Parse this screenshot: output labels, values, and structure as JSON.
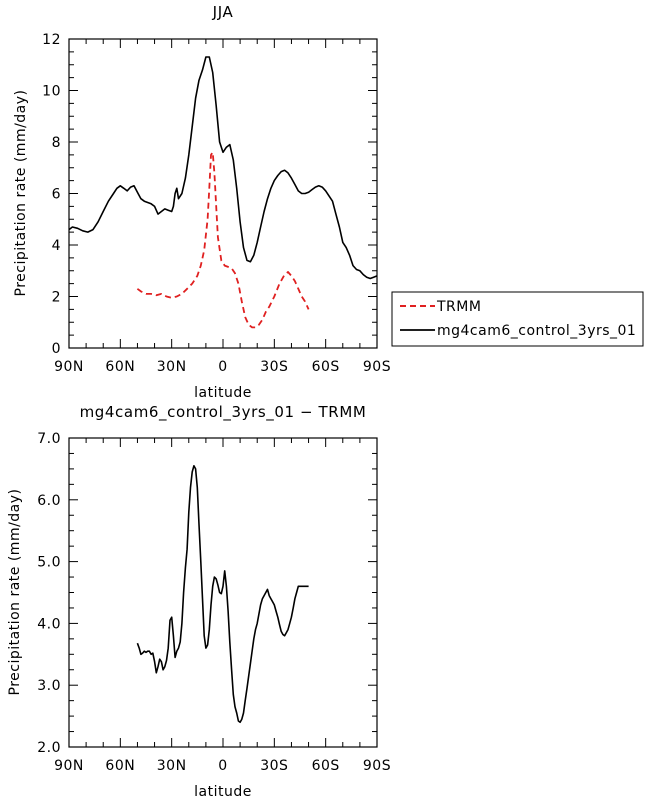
{
  "chart_data": [
    {
      "type": "line",
      "title": "JJA",
      "xlabel": "latitude",
      "ylabel": "Precipitation rate  (mm/day)",
      "xlim": [
        -90,
        90
      ],
      "ylim": [
        0,
        12
      ],
      "x_ticks": [
        -90,
        -60,
        -30,
        0,
        30,
        60,
        90
      ],
      "x_tick_labels": [
        "90N",
        "60N",
        "30N",
        "0",
        "30S",
        "60S",
        "90S"
      ],
      "y_ticks": [
        0,
        2,
        4,
        6,
        8,
        10,
        12
      ],
      "y_tick_labels": [
        "0",
        "2",
        "4",
        "6",
        "8",
        "10",
        "12"
      ],
      "legend": {
        "placement": "outside-right",
        "entries": [
          "TRMM",
          "mg4cam6_control_3yrs_01"
        ]
      },
      "series": [
        {
          "name": "TRMM",
          "color": "#e02020",
          "dash": "dashed",
          "x": [
            -50,
            -48,
            -45,
            -42,
            -39,
            -36,
            -33,
            -30,
            -27,
            -24,
            -21,
            -18,
            -15,
            -13,
            -11,
            -9,
            -8,
            -7,
            -6,
            -5,
            -4,
            -3,
            -1,
            1,
            3,
            5,
            7,
            9,
            11,
            13,
            15,
            17,
            19,
            21,
            23,
            25,
            27,
            30,
            33,
            36,
            38,
            40,
            42,
            44,
            46,
            48,
            50
          ],
          "y": [
            2.3,
            2.2,
            2.1,
            2.1,
            2.05,
            2.1,
            2.0,
            1.95,
            2.0,
            2.1,
            2.3,
            2.5,
            2.8,
            3.2,
            3.8,
            5.0,
            6.2,
            7.5,
            7.6,
            6.8,
            5.5,
            4.3,
            3.4,
            3.2,
            3.15,
            3.1,
            2.9,
            2.5,
            1.8,
            1.2,
            0.9,
            0.8,
            0.8,
            0.9,
            1.1,
            1.4,
            1.6,
            2.0,
            2.5,
            2.85,
            2.95,
            2.8,
            2.6,
            2.3,
            2.0,
            1.8,
            1.5
          ]
        },
        {
          "name": "mg4cam6_control_3yrs_01",
          "color": "#000000",
          "dash": "solid",
          "x": [
            -90,
            -88,
            -85,
            -82,
            -79,
            -76,
            -73,
            -70,
            -67,
            -64,
            -62,
            -60,
            -58,
            -56,
            -54,
            -52,
            -50,
            -48,
            -46,
            -44,
            -42,
            -40,
            -38,
            -36,
            -34,
            -32,
            -30,
            -29,
            -28,
            -27,
            -26,
            -24,
            -22,
            -20,
            -18,
            -16,
            -14,
            -12,
            -10,
            -8,
            -6,
            -4,
            -3,
            -2,
            0,
            2,
            4,
            6,
            8,
            10,
            12,
            14,
            16,
            18,
            20,
            22,
            24,
            26,
            28,
            30,
            32,
            34,
            36,
            38,
            40,
            42,
            44,
            46,
            48,
            50,
            52,
            54,
            56,
            58,
            60,
            62,
            64,
            66,
            68,
            70,
            72,
            74,
            76,
            78,
            80,
            82,
            84,
            86,
            88,
            90
          ],
          "y": [
            4.6,
            4.7,
            4.65,
            4.55,
            4.5,
            4.6,
            4.9,
            5.3,
            5.7,
            6.0,
            6.2,
            6.3,
            6.2,
            6.1,
            6.25,
            6.3,
            6.05,
            5.8,
            5.7,
            5.65,
            5.6,
            5.5,
            5.2,
            5.3,
            5.4,
            5.35,
            5.3,
            5.5,
            6.0,
            6.2,
            5.8,
            6.0,
            6.6,
            7.5,
            8.6,
            9.7,
            10.4,
            10.8,
            11.3,
            11.3,
            10.7,
            9.4,
            8.7,
            8.0,
            7.6,
            7.8,
            7.9,
            7.3,
            6.2,
            4.9,
            3.9,
            3.4,
            3.35,
            3.6,
            4.1,
            4.7,
            5.3,
            5.8,
            6.2,
            6.5,
            6.7,
            6.85,
            6.9,
            6.8,
            6.6,
            6.35,
            6.1,
            6.0,
            6.0,
            6.05,
            6.15,
            6.25,
            6.3,
            6.25,
            6.1,
            5.9,
            5.7,
            5.2,
            4.7,
            4.1,
            3.9,
            3.6,
            3.2,
            3.05,
            3.0,
            2.85,
            2.75,
            2.7,
            2.75,
            2.8
          ]
        }
      ]
    },
    {
      "type": "line",
      "title": "mg4cam6_control_3yrs_01 − TRMM",
      "xlabel": "latitude",
      "ylabel": "Precipitation rate  (mm/day)",
      "xlim": [
        -90,
        90
      ],
      "ylim": [
        2.0,
        7.0
      ],
      "x_ticks": [
        -90,
        -60,
        -30,
        0,
        30,
        60,
        90
      ],
      "x_tick_labels": [
        "90N",
        "60N",
        "30N",
        "0",
        "30S",
        "60S",
        "90S"
      ],
      "y_ticks": [
        2.0,
        3.0,
        4.0,
        5.0,
        6.0,
        7.0
      ],
      "y_tick_labels": [
        "2.0",
        "3.0",
        "4.0",
        "5.0",
        "6.0",
        "7.0"
      ],
      "series": [
        {
          "color": "#000000",
          "x": [
            -50,
            -49,
            -48,
            -47,
            -46,
            -45,
            -44,
            -43,
            -42,
            -41,
            -40,
            -39,
            -38,
            -37,
            -36,
            -35,
            -34,
            -33,
            -32,
            -31,
            -30,
            -29,
            -28,
            -27,
            -26,
            -25,
            -24,
            -23,
            -22,
            -21,
            -20,
            -19,
            -18,
            -17,
            -16,
            -15,
            -14,
            -13,
            -12,
            -11,
            -10,
            -9,
            -8,
            -7,
            -6,
            -5,
            -4,
            -3,
            -2,
            -1,
            0,
            1,
            2,
            3,
            4,
            5,
            6,
            7,
            8,
            9,
            10,
            11,
            12,
            13,
            14,
            15,
            16,
            17,
            18,
            19,
            20,
            21,
            22,
            23,
            24,
            25,
            26,
            27,
            28,
            29,
            30,
            31,
            32,
            33,
            34,
            35,
            36,
            37,
            38,
            39,
            40,
            41,
            42,
            43,
            44,
            45,
            46,
            47,
            48,
            49,
            50
          ],
          "y": [
            3.68,
            3.6,
            3.5,
            3.52,
            3.55,
            3.53,
            3.55,
            3.55,
            3.5,
            3.52,
            3.38,
            3.2,
            3.3,
            3.42,
            3.38,
            3.25,
            3.3,
            3.4,
            3.6,
            4.05,
            4.1,
            3.8,
            3.45,
            3.55,
            3.6,
            3.7,
            4.0,
            4.5,
            4.9,
            5.2,
            5.8,
            6.2,
            6.45,
            6.55,
            6.5,
            6.2,
            5.6,
            5.0,
            4.4,
            3.8,
            3.6,
            3.65,
            3.9,
            4.3,
            4.6,
            4.75,
            4.72,
            4.62,
            4.5,
            4.48,
            4.6,
            4.85,
            4.6,
            4.2,
            3.7,
            3.25,
            2.85,
            2.65,
            2.55,
            2.42,
            2.4,
            2.45,
            2.55,
            2.75,
            2.95,
            3.15,
            3.35,
            3.55,
            3.75,
            3.9,
            4.0,
            4.15,
            4.3,
            4.4,
            4.45,
            4.5,
            4.55,
            4.45,
            4.4,
            4.35,
            4.3,
            4.2,
            4.1,
            3.98,
            3.87,
            3.82,
            3.8,
            3.85,
            3.9,
            4.0,
            4.1,
            4.25,
            4.4,
            4.5,
            4.6,
            4.6,
            4.6,
            4.6,
            4.6,
            4.6,
            4.6
          ]
        }
      ]
    }
  ]
}
